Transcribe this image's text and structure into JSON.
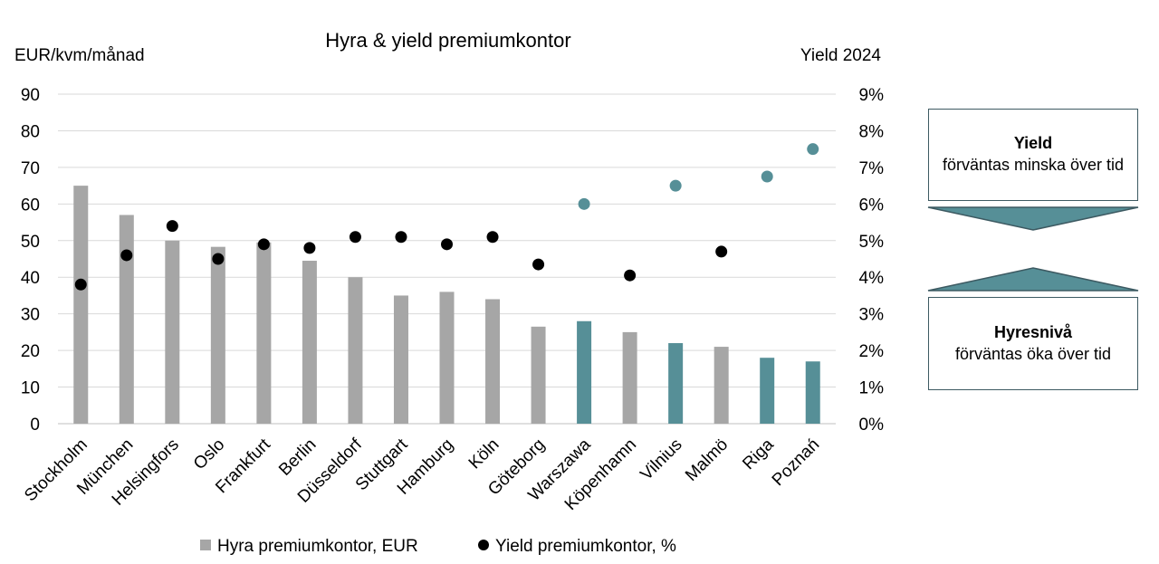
{
  "chart_data": {
    "type": "bar",
    "title": "Hyra & yield premiumkontor",
    "ylabel_left": "EUR/kvm/månad",
    "ylabel_right": "Yield 2024",
    "ylim_left": [
      0,
      90
    ],
    "ylim_right": [
      0,
      9
    ],
    "yticks_left": [
      "0",
      "10",
      "20",
      "30",
      "40",
      "50",
      "60",
      "70",
      "80",
      "90"
    ],
    "yticks_right": [
      "0%",
      "1%",
      "2%",
      "3%",
      "4%",
      "5%",
      "6%",
      "7%",
      "8%",
      "9%"
    ],
    "grid": true,
    "categories": [
      "Stockholm",
      "München",
      "Helsingfors",
      "Oslo",
      "Frankfurt",
      "Berlin",
      "Düsseldorf",
      "Stuttgart",
      "Hamburg",
      "Köln",
      "Göteborg",
      "Warszawa",
      "Köpenhamn",
      "Vilnius",
      "Malmö",
      "Riga",
      "Poznań"
    ],
    "series": [
      {
        "name": "Hyra premiumkontor, EUR",
        "type": "bar",
        "axis": "left",
        "values": [
          65,
          57,
          50,
          48.3,
          49.5,
          44.5,
          40,
          35,
          36,
          34,
          26.5,
          28,
          25,
          22,
          21,
          18,
          17
        ]
      },
      {
        "name": "Yield premiumkontor, %",
        "type": "scatter",
        "axis": "right",
        "values": [
          3.8,
          4.6,
          5.4,
          4.5,
          4.9,
          4.8,
          5.1,
          5.1,
          4.9,
          5.1,
          4.35,
          6.0,
          4.05,
          6.5,
          4.7,
          6.75,
          7.5
        ]
      }
    ],
    "highlighted_categories": [
      "Warszawa",
      "Vilnius",
      "Riga",
      "Poznań"
    ],
    "colors": {
      "bar": "#a6a6a6",
      "bar_highlight": "#568f97",
      "dot": "#000000",
      "dot_highlight": "#568f97",
      "grid": "#d9d9d9",
      "arrow_fill": "#568f97",
      "arrow_stroke": "#3d5a62"
    },
    "legend": {
      "placement": "bottom",
      "items": [
        "Hyra premiumkontor, EUR",
        "Yield premiumkontor, %"
      ]
    }
  },
  "notes": {
    "yield": {
      "heading": "Yield",
      "text": "förväntas minska över tid"
    },
    "rent": {
      "heading": "Hyresnivå",
      "text": "förväntas öka över tid"
    }
  }
}
